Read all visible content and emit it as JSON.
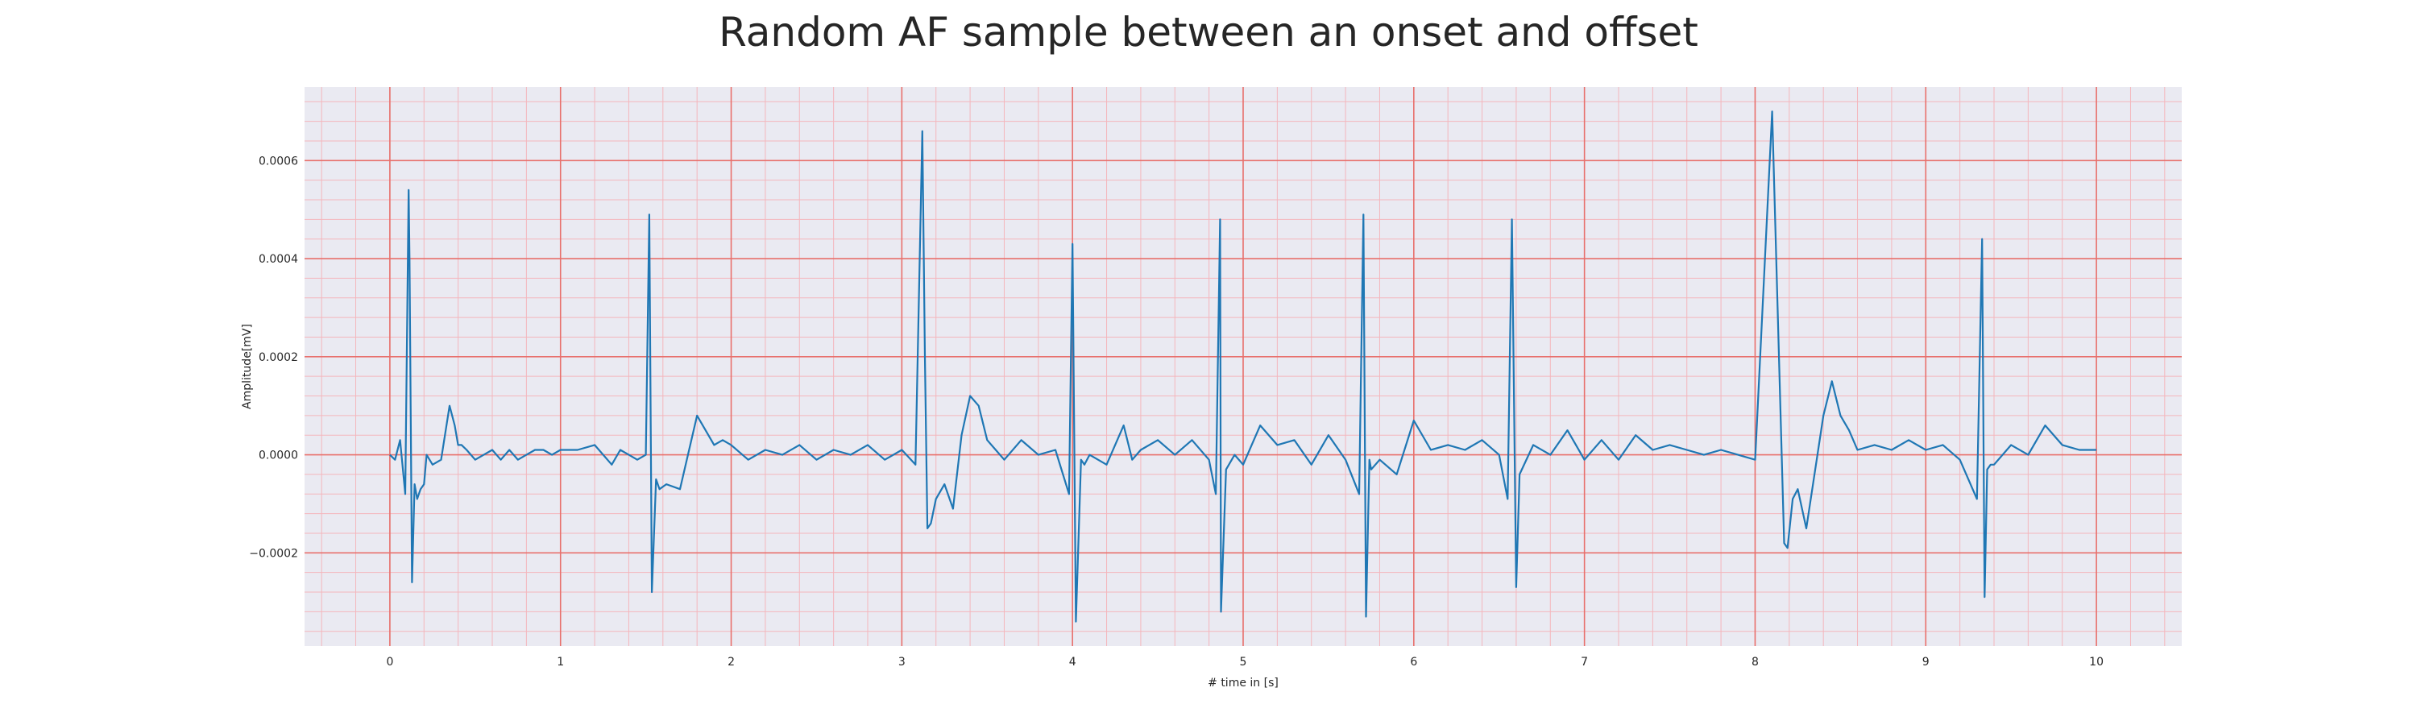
{
  "chart_data": {
    "type": "line",
    "title": "Random AF sample between an onset and offset",
    "xlabel": "# time in [s]",
    "ylabel": "Amplitude[mV]",
    "xlim": [
      -0.5,
      10.5
    ],
    "ylim": [
      -0.00039,
      0.00075
    ],
    "x_ticks": [
      0,
      1,
      2,
      3,
      4,
      5,
      6,
      7,
      8,
      9,
      10
    ],
    "x_tick_labels": [
      "0",
      "1",
      "2",
      "3",
      "4",
      "5",
      "6",
      "7",
      "8",
      "9",
      "10"
    ],
    "y_ticks": [
      -0.0002,
      0.0,
      0.0002,
      0.0004,
      0.0006
    ],
    "y_tick_labels": [
      "−0.0002",
      "0.0000",
      "0.0002",
      "0.0004",
      "0.0006"
    ],
    "grid": true,
    "minor_grid": true,
    "legend": false,
    "colors": {
      "background": "#eaeaf2",
      "major_grid": "#e8706c",
      "minor_grid": "#f4b6bc",
      "line": "#1f77b4"
    },
    "series": [
      {
        "x": [
          0.0,
          0.03,
          0.06,
          0.09,
          0.11,
          0.115,
          0.13,
          0.145,
          0.16,
          0.18,
          0.2,
          0.215,
          0.25,
          0.3,
          0.35,
          0.38,
          0.4,
          0.42,
          0.45,
          0.5,
          0.55,
          0.6,
          0.65,
          0.7,
          0.75,
          0.8,
          0.85,
          0.9,
          0.95,
          1.0,
          1.1,
          1.2,
          1.3,
          1.35,
          1.4,
          1.45,
          1.5,
          1.52,
          1.535,
          1.56,
          1.58,
          1.62,
          1.7,
          1.8,
          1.9,
          1.95,
          2.0,
          2.1,
          2.2,
          2.3,
          2.4,
          2.5,
          2.6,
          2.7,
          2.8,
          2.9,
          3.0,
          3.08,
          3.12,
          3.135,
          3.15,
          3.17,
          3.2,
          3.25,
          3.3,
          3.35,
          3.4,
          3.45,
          3.5,
          3.55,
          3.6,
          3.7,
          3.8,
          3.9,
          3.98,
          4.0,
          4.02,
          4.05,
          4.07,
          4.1,
          4.2,
          4.3,
          4.35,
          4.4,
          4.5,
          4.6,
          4.7,
          4.8,
          4.84,
          4.865,
          4.87,
          4.9,
          4.95,
          5.0,
          5.1,
          5.2,
          5.3,
          5.4,
          5.5,
          5.6,
          5.68,
          5.705,
          5.72,
          5.74,
          5.75,
          5.8,
          5.9,
          6.0,
          6.1,
          6.2,
          6.3,
          6.4,
          6.5,
          6.55,
          6.575,
          6.6,
          6.62,
          6.7,
          6.8,
          6.9,
          7.0,
          7.1,
          7.2,
          7.3,
          7.4,
          7.5,
          7.6,
          7.7,
          7.8,
          7.9,
          8.0,
          8.1,
          8.17,
          8.19,
          8.22,
          8.25,
          8.3,
          8.4,
          8.45,
          8.5,
          8.55,
          8.6,
          8.7,
          8.8,
          8.9,
          9.0,
          9.1,
          9.2,
          9.3,
          9.33,
          9.345,
          9.36,
          9.38,
          9.4,
          9.5,
          9.6,
          9.7,
          9.8,
          9.9,
          10.0
        ],
        "y": [
          0.0,
          -1e-05,
          3e-05,
          -8e-05,
          0.00054,
          0.0004,
          -0.00026,
          -6e-05,
          -9e-05,
          -7e-05,
          -6e-05,
          0.0,
          -2e-05,
          -1e-05,
          0.0001,
          6e-05,
          2e-05,
          2e-05,
          1e-05,
          -1e-05,
          0.0,
          1e-05,
          -1e-05,
          1e-05,
          -1e-05,
          0.0,
          1e-05,
          1e-05,
          0.0,
          1e-05,
          1e-05,
          2e-05,
          -2e-05,
          1e-05,
          0.0,
          -1e-05,
          0.0,
          0.00049,
          -0.00028,
          -5e-05,
          -7e-05,
          -6e-05,
          -7e-05,
          8e-05,
          2e-05,
          3e-05,
          2e-05,
          -1e-05,
          1e-05,
          0.0,
          2e-05,
          -1e-05,
          1e-05,
          0.0,
          2e-05,
          -1e-05,
          1e-05,
          -2e-05,
          0.00066,
          0.0002,
          -0.00015,
          -0.00014,
          -9e-05,
          -6e-05,
          -0.00011,
          4e-05,
          0.00012,
          0.0001,
          3e-05,
          1e-05,
          -1e-05,
          3e-05,
          0.0,
          1e-05,
          -8e-05,
          0.00043,
          -0.00034,
          -1e-05,
          -2e-05,
          0.0,
          -2e-05,
          6e-05,
          -1e-05,
          1e-05,
          3e-05,
          0.0,
          3e-05,
          -1e-05,
          -8e-05,
          0.00048,
          -0.00032,
          -3e-05,
          0.0,
          -2e-05,
          6e-05,
          2e-05,
          3e-05,
          -2e-05,
          4e-05,
          -1e-05,
          -8e-05,
          0.00049,
          -0.00033,
          -1e-05,
          -3e-05,
          -1e-05,
          -4e-05,
          7e-05,
          1e-05,
          2e-05,
          1e-05,
          3e-05,
          0.0,
          -9e-05,
          0.00048,
          -0.00027,
          -4e-05,
          2e-05,
          0.0,
          5e-05,
          -1e-05,
          3e-05,
          -1e-05,
          4e-05,
          1e-05,
          2e-05,
          1e-05,
          0.0,
          1e-05,
          0.0,
          -1e-05,
          0.0007,
          -0.00018,
          -0.00019,
          -9e-05,
          -7e-05,
          -0.00015,
          8e-05,
          0.00015,
          8e-05,
          5e-05,
          1e-05,
          2e-05,
          1e-05,
          3e-05,
          1e-05,
          2e-05,
          -1e-05,
          -9e-05,
          0.00044,
          -0.00029,
          -3e-05,
          -2e-05,
          -2e-05,
          2e-05,
          0.0,
          6e-05,
          2e-05,
          1e-05,
          1e-05
        ]
      }
    ]
  }
}
